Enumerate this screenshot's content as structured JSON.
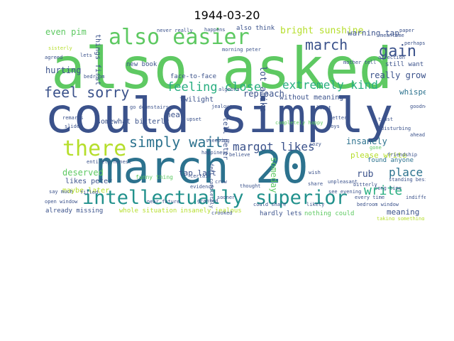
{
  "title": "1944-03-20",
  "words": [
    {
      "text": "also asked",
      "color": "#5ec962"
    },
    {
      "text": "could simply",
      "color": "#3b528b"
    },
    {
      "text": "march 20",
      "color": "#2c728e"
    },
    {
      "text": "intellectually superior",
      "color": "#21918c"
    },
    {
      "text": "also easier",
      "color": "#5ec962"
    },
    {
      "text": "feel sorry",
      "color": "#3b528b"
    },
    {
      "text": "there",
      "color": "#b5de2b"
    },
    {
      "text": "simply wait",
      "color": "#2c728e"
    },
    {
      "text": "gain",
      "color": "#3b528b"
    },
    {
      "text": "march",
      "color": "#3b528b"
    },
    {
      "text": "extremely kind",
      "color": "#28ae80"
    },
    {
      "text": "feeling close",
      "color": "#28ae80"
    },
    {
      "text": "write",
      "color": "#28ae80"
    },
    {
      "text": "place",
      "color": "#2c728e"
    },
    {
      "text": "margot likes",
      "color": "#3b528b"
    },
    {
      "text": "even pim",
      "color": "#5ec962"
    },
    {
      "text": "bright sunshine",
      "color": "#b5de2b"
    },
    {
      "text": "hurting",
      "color": "#3b528b"
    },
    {
      "text": "reproach",
      "color": "#3b528b"
    },
    {
      "text": "really grown",
      "color": "#3b528b"
    },
    {
      "text": "deserved",
      "color": "#5ec962"
    },
    {
      "text": "rub",
      "color": "#3b528b"
    },
    {
      "text": "insanely",
      "color": "#2c728e"
    },
    {
      "text": "near",
      "color": "#3b528b"
    },
    {
      "text": "please write",
      "color": "#b5de2b"
    },
    {
      "text": "warning tap",
      "color": "#3b528b"
    },
    {
      "text": "whisper",
      "color": "#2c728e"
    },
    {
      "text": "tap last",
      "color": "#3b528b"
    },
    {
      "text": "likes peter",
      "color": "#3b528b"
    },
    {
      "text": "maybe later",
      "color": "#b5de2b"
    },
    {
      "text": "meaning",
      "color": "#3b528b"
    },
    {
      "text": "without meaning",
      "color": "#3b528b"
    },
    {
      "text": "somewhat bitterly",
      "color": "#3b528b"
    },
    {
      "text": "twilight",
      "color": "#3b528b"
    },
    {
      "text": "face-to-face",
      "color": "#3b528b"
    },
    {
      "text": "already missing",
      "color": "#3b528b"
    },
    {
      "text": "whole situation",
      "color": "#b5de2b"
    },
    {
      "text": "insanely jealous",
      "color": "#b5de2b"
    },
    {
      "text": "hardly lets",
      "color": "#3b528b"
    },
    {
      "text": "nothing could",
      "color": "#5ec962"
    },
    {
      "text": "still want",
      "color": "#3b528b"
    },
    {
      "text": "found anyone",
      "color": "#2c728e"
    },
    {
      "text": "new book",
      "color": "#3b528b"
    },
    {
      "text": "lot alike",
      "color": "#3b528b"
    },
    {
      "text": "someday",
      "color": "#5ec962"
    },
    {
      "text": "tell peter",
      "color": "#3b528b"
    },
    {
      "text": "things first",
      "color": "#3b528b"
    },
    {
      "text": "also think",
      "color": "#3b528b"
    },
    {
      "text": "funny thing",
      "color": "#5ec962"
    },
    {
      "text": "taking something",
      "color": "#b5de2b"
    },
    {
      "text": "say much",
      "color": "#3b528b"
    },
    {
      "text": "filled",
      "color": "#3b528b"
    },
    {
      "text": "near future",
      "color": "#3b528b"
    },
    {
      "text": "morning peter",
      "color": "#3b528b"
    },
    {
      "text": "happens",
      "color": "#3b528b"
    },
    {
      "text": "never really",
      "color": "#3b528b"
    },
    {
      "text": "entirely honest",
      "color": "#3b528b"
    },
    {
      "text": "could share",
      "color": "#3b528b"
    },
    {
      "text": "go downstairs",
      "color": "#3b528b"
    },
    {
      "text": "feel completely",
      "color": "#3b528b"
    },
    {
      "text": "happiness",
      "color": "#3b528b"
    },
    {
      "text": "friendship",
      "color": "#3b528b"
    },
    {
      "text": "standing beside",
      "color": "#3b528b"
    },
    {
      "text": "gone",
      "color": "#5ec962"
    },
    {
      "text": "bitterly",
      "color": "#3b528b"
    },
    {
      "text": "affection",
      "color": "#3b528b"
    },
    {
      "text": "jealous",
      "color": "#3b528b"
    },
    {
      "text": "disturbing",
      "color": "#3b528b"
    },
    {
      "text": "completely happy",
      "color": "#5ec962"
    },
    {
      "text": "mother tell",
      "color": "#3b528b"
    },
    {
      "text": "paper",
      "color": "#3b528b"
    },
    {
      "text": "perhaps",
      "color": "#3b528b"
    },
    {
      "text": "meantime",
      "color": "#3b528b"
    },
    {
      "text": "sisterly",
      "color": "#b5de2b"
    },
    {
      "text": "agreed",
      "color": "#3b528b"
    },
    {
      "text": "lets",
      "color": "#3b528b"
    },
    {
      "text": "algebra",
      "color": "#3b528b"
    },
    {
      "text": "bedroom",
      "color": "#3b528b"
    },
    {
      "text": "upset",
      "color": "#3b528b"
    },
    {
      "text": "letter",
      "color": "#3b528b"
    },
    {
      "text": "see evening",
      "color": "#3b528b"
    },
    {
      "text": "unpleasant",
      "color": "#3b528b"
    },
    {
      "text": "likely",
      "color": "#3b528b"
    },
    {
      "text": "wish",
      "color": "#3b528b"
    },
    {
      "text": "trust",
      "color": "#3b528b"
    },
    {
      "text": "least",
      "color": "#3b528b"
    },
    {
      "text": "boys",
      "color": "#3b528b"
    },
    {
      "text": "thought",
      "color": "#3b528b"
    },
    {
      "text": "cozy",
      "color": "#3b528b"
    },
    {
      "text": "indifference",
      "color": "#3b528b"
    },
    {
      "text": "sooner",
      "color": "#3b528b"
    },
    {
      "text": "goodness",
      "color": "#3b528b"
    },
    {
      "text": "evidence",
      "color": "#3b528b"
    },
    {
      "text": "certain",
      "color": "#3b528b"
    },
    {
      "text": "granted",
      "color": "#3b528b"
    },
    {
      "text": "share",
      "color": "#3b528b"
    },
    {
      "text": "crow",
      "color": "#3b528b"
    },
    {
      "text": "remarks",
      "color": "#3b528b"
    },
    {
      "text": "slide",
      "color": "#3b528b"
    },
    {
      "text": "long time",
      "color": "#3b528b"
    },
    {
      "text": "every time",
      "color": "#3b528b"
    },
    {
      "text": "ahead",
      "color": "#3b528b"
    },
    {
      "text": "believe",
      "color": "#3b528b"
    },
    {
      "text": "open window",
      "color": "#3b528b"
    },
    {
      "text": "sleeping",
      "color": "#3b528b"
    },
    {
      "text": "crooked",
      "color": "#3b528b"
    },
    {
      "text": "bedroom window",
      "color": "#3b528b"
    }
  ]
}
